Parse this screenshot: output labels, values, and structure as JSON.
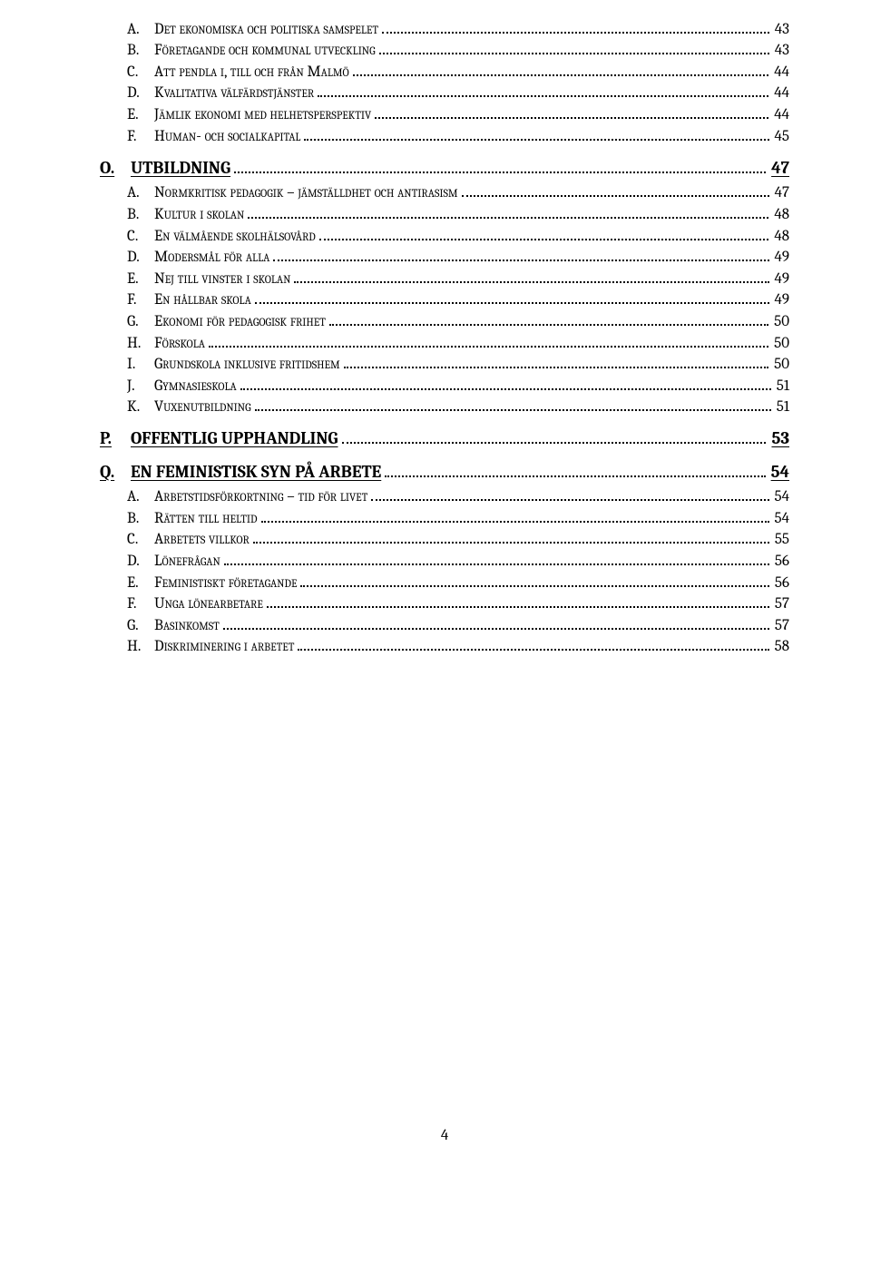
{
  "entries": [
    {
      "level": 2,
      "marker": "A.",
      "title": "Det ekonomiska och politiska samspelet",
      "page": "43"
    },
    {
      "level": 2,
      "marker": "B.",
      "title": "Företagande och kommunal utveckling",
      "page": "43"
    },
    {
      "level": 2,
      "marker": "C.",
      "title": "Att pendla i, till och från Malmö",
      "page": "44"
    },
    {
      "level": 2,
      "marker": "D.",
      "title": "Kvalitativa välfärdstjänster",
      "page": "44"
    },
    {
      "level": 2,
      "marker": "E.",
      "title": "Jämlik ekonomi med helhetsperspektiv",
      "page": "44"
    },
    {
      "level": 2,
      "marker": "F.",
      "title": "Human- och socialkapital",
      "page": "45"
    },
    {
      "level": 1,
      "marker": "O.",
      "title": "UTBILDNING",
      "page": "47"
    },
    {
      "level": 2,
      "marker": "A.",
      "title": "Normkritisk pedagogik – jämställdhet och antirasism",
      "page": "47"
    },
    {
      "level": 2,
      "marker": "B.",
      "title": "Kultur i skolan",
      "page": "48"
    },
    {
      "level": 2,
      "marker": "C.",
      "title": "En välmående skolhälsovård",
      "page": "48"
    },
    {
      "level": 2,
      "marker": "D.",
      "title": "Modersmål för alla",
      "page": "49"
    },
    {
      "level": 2,
      "marker": "E.",
      "title": "Nej till vinster i skolan",
      "page": "49"
    },
    {
      "level": 2,
      "marker": "F.",
      "title": "En hållbar skola",
      "page": "49"
    },
    {
      "level": 2,
      "marker": "G.",
      "title": "Ekonomi för pedagogisk frihet",
      "page": "50"
    },
    {
      "level": 2,
      "marker": "H.",
      "title": "Förskola",
      "page": "50"
    },
    {
      "level": 2,
      "marker": "I.",
      "title": "Grundskola inklusive fritidshem",
      "page": "50"
    },
    {
      "level": 2,
      "marker": "J.",
      "title": "Gymnasieskola",
      "page": "51"
    },
    {
      "level": 2,
      "marker": "K.",
      "title": "Vuxenutbildning",
      "page": "51"
    },
    {
      "level": 1,
      "marker": "P.",
      "title": "OFFENTLIG UPPHANDLING",
      "page": "53"
    },
    {
      "level": 1,
      "marker": "Q.",
      "title": "EN FEMINISTISK SYN PÅ ARBETE",
      "page": "54"
    },
    {
      "level": 2,
      "marker": "A.",
      "title": "Arbetstidsförkortning – tid för livet",
      "page": "54"
    },
    {
      "level": 2,
      "marker": "B.",
      "title": "Rätten till heltid",
      "page": "54"
    },
    {
      "level": 2,
      "marker": "C.",
      "title": "Arbetets villkor",
      "page": "55"
    },
    {
      "level": 2,
      "marker": "D.",
      "title": "Lönefrågan",
      "page": "56"
    },
    {
      "level": 2,
      "marker": "E.",
      "title": "Feministiskt företagande",
      "page": "56"
    },
    {
      "level": 2,
      "marker": "F.",
      "title": "Unga lönearbetare",
      "page": "57"
    },
    {
      "level": 2,
      "marker": "G.",
      "title": "Basinkomst",
      "page": "57"
    },
    {
      "level": 2,
      "marker": "H.",
      "title": "Diskriminering i arbetet",
      "page": "58"
    }
  ],
  "page_number": "4"
}
